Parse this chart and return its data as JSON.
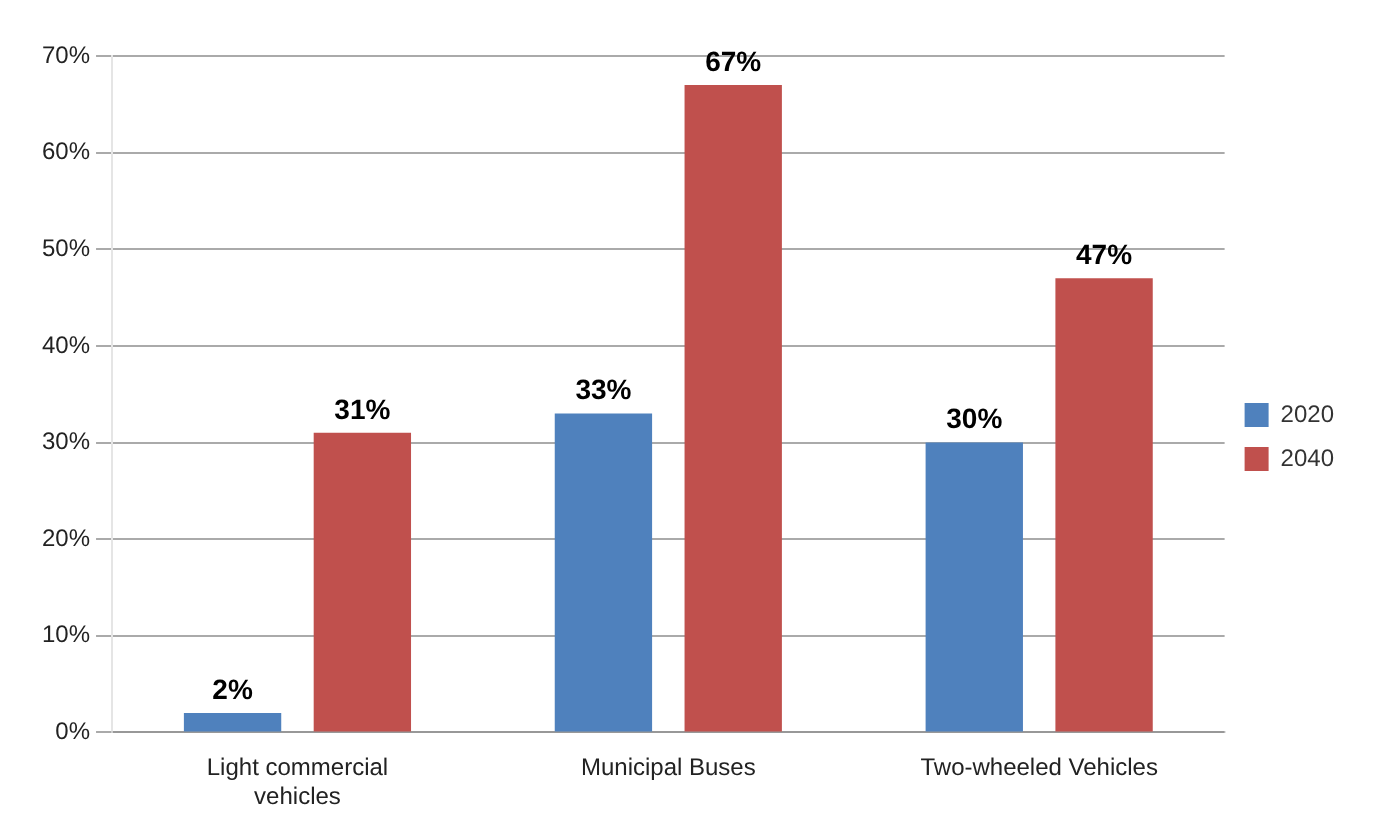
{
  "chart_data": {
    "type": "bar",
    "categories": [
      "Light commercial vehicles",
      "Municipal Buses",
      "Two-wheeled Vehicles"
    ],
    "series": [
      {
        "name": "2020",
        "color": "#4f81bd",
        "values": [
          2,
          33,
          30
        ],
        "value_labels": [
          "2%",
          "33%",
          "30%"
        ]
      },
      {
        "name": "2040",
        "color": "#c0504d",
        "values": [
          31,
          67,
          47
        ],
        "value_labels": [
          "31%",
          "67%",
          "47%"
        ]
      }
    ],
    "ylim": [
      0,
      70
    ],
    "yticks": [
      {
        "value": 0,
        "label": "0%"
      },
      {
        "value": 10,
        "label": "10%"
      },
      {
        "value": 20,
        "label": "20%"
      },
      {
        "value": 30,
        "label": "30%"
      },
      {
        "value": 40,
        "label": "40%"
      },
      {
        "value": 50,
        "label": "50%"
      },
      {
        "value": 60,
        "label": "60%"
      },
      {
        "value": 70,
        "label": "70%"
      }
    ],
    "grid": "y",
    "legend": "right"
  }
}
